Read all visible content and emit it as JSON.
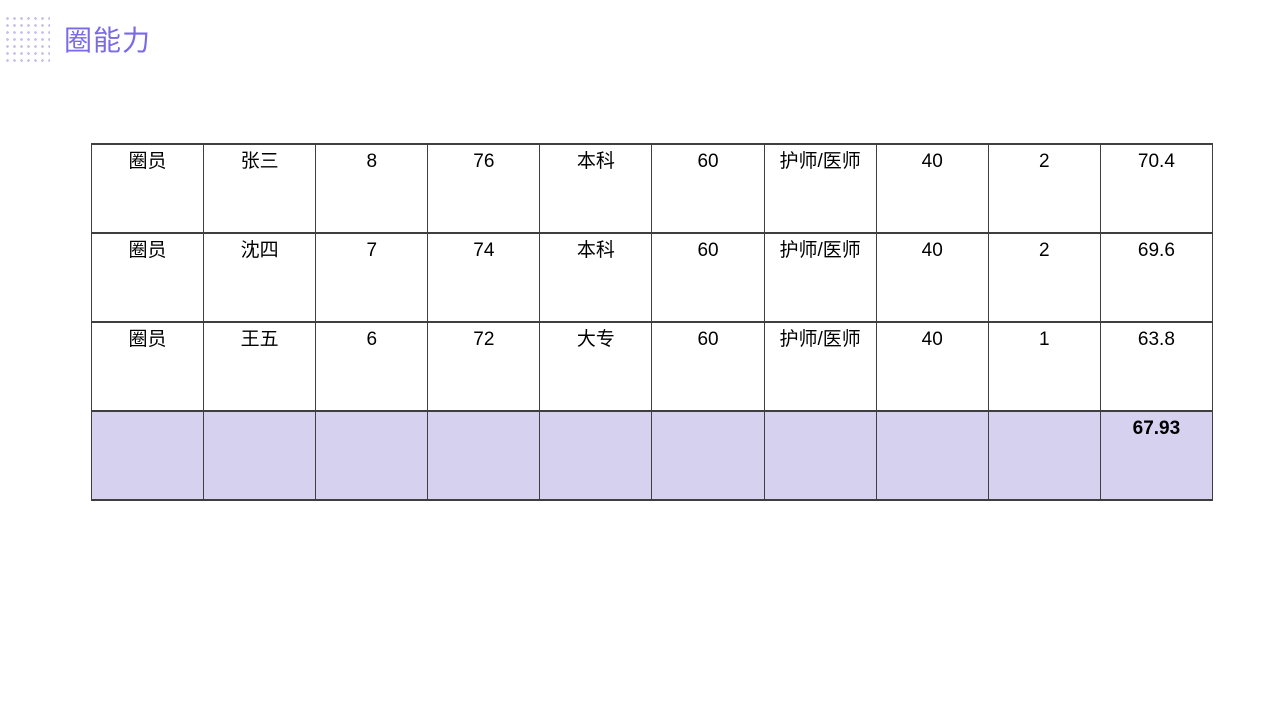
{
  "slide": {
    "title": "圈能力",
    "accent_color": "#7a6ae7",
    "highlight_row_color": "#d6d1ef",
    "table_border_color": "#3f3f3f",
    "background_color": "#ffffff"
  },
  "table": {
    "columns": 10,
    "rows": [
      {
        "cells": [
          "圈员",
          "张三",
          "8",
          "76",
          "本科",
          "60",
          "护师/医师",
          "40",
          "2",
          "70.4"
        ],
        "highlight": false
      },
      {
        "cells": [
          "圈员",
          "沈四",
          "7",
          "74",
          "本科",
          "60",
          "护师/医师",
          "40",
          "2",
          "69.6"
        ],
        "highlight": false
      },
      {
        "cells": [
          "圈员",
          "王五",
          "6",
          "72",
          "大专",
          "60",
          "护师/医师",
          "40",
          "1",
          "63.8"
        ],
        "highlight": false
      },
      {
        "cells": [
          "",
          "",
          "",
          "",
          "",
          "",
          "",
          "",
          "",
          "67.93"
        ],
        "highlight": true,
        "bold_last": true
      }
    ]
  }
}
